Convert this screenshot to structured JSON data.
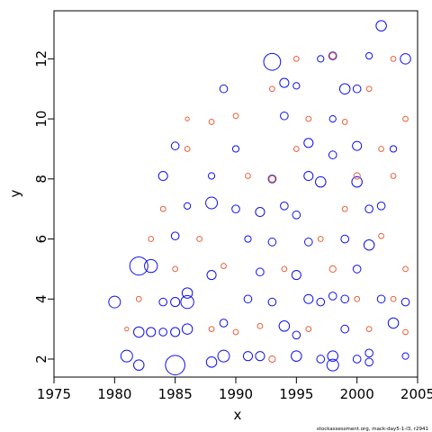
{
  "chart_data": {
    "type": "scatter",
    "title": "",
    "xlabel": "x",
    "ylabel": "y",
    "xlim": [
      1975,
      2005
    ],
    "ylim": [
      1.4,
      13.6
    ],
    "x_ticks": [
      1975,
      1980,
      1985,
      1990,
      1995,
      2000,
      2005
    ],
    "y_ticks": [
      2,
      4,
      6,
      8,
      10,
      12
    ],
    "x_tick_labels": [
      "1975",
      "1980",
      "1985",
      "1990",
      "1995",
      "2000",
      "2005"
    ],
    "y_tick_labels": [
      "2",
      "4",
      "6",
      "8",
      "10",
      "12"
    ],
    "legend": "none",
    "grid": false,
    "marker": "open-circle",
    "colors": {
      "positive": "#1010ee",
      "negative": "#e8603c",
      "axis": "#000000"
    },
    "series": [
      {
        "color_key": "positive",
        "points": [
          [
            1980,
            3.9,
            0.9
          ],
          [
            1981,
            2.1,
            0.9
          ],
          [
            1982,
            5.1,
            1.4
          ],
          [
            1982,
            1.8,
            0.8
          ],
          [
            1982,
            2.9,
            0.8
          ],
          [
            1983,
            5.1,
            1.0
          ],
          [
            1983,
            2.9,
            0.7
          ],
          [
            1984,
            2.9,
            0.6
          ],
          [
            1984,
            3.9,
            0.6
          ],
          [
            1984,
            8.1,
            0.7
          ],
          [
            1985,
            3.9,
            0.7
          ],
          [
            1985,
            2.9,
            0.7
          ],
          [
            1985,
            1.8,
            1.5
          ],
          [
            1985,
            6.1,
            0.6
          ],
          [
            1985,
            9.1,
            0.6
          ],
          [
            1986,
            4.2,
            0.8
          ],
          [
            1986,
            3.9,
            1.0
          ],
          [
            1986,
            7.1,
            0.5
          ],
          [
            1986,
            3.0,
            0.8
          ],
          [
            1988,
            4.8,
            0.7
          ],
          [
            1988,
            7.2,
            0.9
          ],
          [
            1988,
            8.1,
            0.5
          ],
          [
            1988,
            1.9,
            0.8
          ],
          [
            1989,
            3.2,
            0.6
          ],
          [
            1989,
            2.1,
            0.9
          ],
          [
            1989,
            11.0,
            0.6
          ],
          [
            1990,
            9.0,
            0.5
          ],
          [
            1990,
            7.0,
            0.6
          ],
          [
            1991,
            2.1,
            0.7
          ],
          [
            1991,
            4.0,
            0.6
          ],
          [
            1991,
            6.0,
            0.5
          ],
          [
            1992,
            6.9,
            0.7
          ],
          [
            1992,
            2.1,
            0.7
          ],
          [
            1992,
            4.9,
            0.6
          ],
          [
            1993,
            11.9,
            1.3
          ],
          [
            1993,
            5.9,
            0.6
          ],
          [
            1993,
            3.9,
            0.6
          ],
          [
            1993,
            8.0,
            0.6
          ],
          [
            1994,
            3.1,
            0.8
          ],
          [
            1994,
            11.2,
            0.7
          ],
          [
            1994,
            10.1,
            0.6
          ],
          [
            1994,
            7.1,
            0.6
          ],
          [
            1995,
            2.1,
            0.8
          ],
          [
            1995,
            2.8,
            0.6
          ],
          [
            1995,
            4.8,
            0.7
          ],
          [
            1995,
            6.8,
            0.6
          ],
          [
            1995,
            11.1,
            0.5
          ],
          [
            1996,
            4.0,
            0.7
          ],
          [
            1996,
            9.2,
            0.7
          ],
          [
            1996,
            8.1,
            0.7
          ],
          [
            1996,
            5.9,
            0.6
          ],
          [
            1997,
            3.9,
            0.6
          ],
          [
            1997,
            7.9,
            0.8
          ],
          [
            1997,
            2.0,
            0.6
          ],
          [
            1997,
            12.0,
            0.5
          ],
          [
            1998,
            1.8,
            0.9
          ],
          [
            1998,
            2.1,
            0.8
          ],
          [
            1998,
            12.1,
            0.6
          ],
          [
            1998,
            8.8,
            0.6
          ],
          [
            1998,
            4.1,
            0.6
          ],
          [
            1998,
            10.0,
            0.5
          ],
          [
            1999,
            11.0,
            0.8
          ],
          [
            1999,
            4.0,
            0.6
          ],
          [
            1999,
            6.0,
            0.6
          ],
          [
            1999,
            3.0,
            0.6
          ],
          [
            2000,
            11.0,
            0.6
          ],
          [
            2000,
            9.1,
            0.7
          ],
          [
            2000,
            7.9,
            0.8
          ],
          [
            2000,
            2.0,
            0.6
          ],
          [
            2000,
            5.0,
            0.6
          ],
          [
            2001,
            2.2,
            0.6
          ],
          [
            2001,
            7.0,
            0.6
          ],
          [
            2001,
            5.8,
            0.8
          ],
          [
            2001,
            1.9,
            0.6
          ],
          [
            2001,
            12.1,
            0.5
          ],
          [
            2002,
            13.1,
            0.8
          ],
          [
            2002,
            7.1,
            0.6
          ],
          [
            2002,
            4.0,
            0.6
          ],
          [
            2003,
            3.2,
            0.8
          ],
          [
            2003,
            9.0,
            0.5
          ],
          [
            2004,
            12.0,
            0.8
          ],
          [
            2004,
            3.9,
            0.6
          ],
          [
            2004,
            2.1,
            0.5
          ]
        ]
      },
      {
        "color_key": "negative",
        "points": [
          [
            1981,
            3.0,
            0.3
          ],
          [
            1982,
            4.0,
            0.4
          ],
          [
            1983,
            6.0,
            0.4
          ],
          [
            1984,
            7.0,
            0.4
          ],
          [
            1985,
            5.0,
            0.4
          ],
          [
            1986,
            9.0,
            0.4
          ],
          [
            1986,
            10.0,
            0.3
          ],
          [
            1987,
            6.0,
            0.4
          ],
          [
            1988,
            3.0,
            0.4
          ],
          [
            1988,
            9.9,
            0.4
          ],
          [
            1989,
            5.1,
            0.4
          ],
          [
            1990,
            2.9,
            0.4
          ],
          [
            1990,
            10.1,
            0.4
          ],
          [
            1991,
            8.1,
            0.4
          ],
          [
            1992,
            3.1,
            0.4
          ],
          [
            1993,
            2.0,
            0.5
          ],
          [
            1993,
            8.0,
            0.5
          ],
          [
            1993,
            11.0,
            0.4
          ],
          [
            1994,
            5.0,
            0.4
          ],
          [
            1995,
            9.0,
            0.4
          ],
          [
            1995,
            12.0,
            0.4
          ],
          [
            1996,
            3.0,
            0.4
          ],
          [
            1996,
            10.0,
            0.4
          ],
          [
            1997,
            6.0,
            0.4
          ],
          [
            1998,
            5.0,
            0.5
          ],
          [
            1998,
            12.1,
            0.5
          ],
          [
            1999,
            7.0,
            0.4
          ],
          [
            1999,
            9.9,
            0.4
          ],
          [
            2000,
            4.0,
            0.4
          ],
          [
            2000,
            8.1,
            0.5
          ],
          [
            2001,
            3.0,
            0.4
          ],
          [
            2001,
            11.0,
            0.4
          ],
          [
            2002,
            6.1,
            0.4
          ],
          [
            2002,
            9.0,
            0.4
          ],
          [
            2003,
            4.0,
            0.4
          ],
          [
            2003,
            8.1,
            0.4
          ],
          [
            2003,
            12.0,
            0.4
          ],
          [
            2004,
            5.0,
            0.4
          ],
          [
            2004,
            2.9,
            0.4
          ],
          [
            2004,
            10.0,
            0.4
          ]
        ]
      }
    ]
  },
  "footer": "stockassessment.org, mack-day5-1-l3, r2941"
}
